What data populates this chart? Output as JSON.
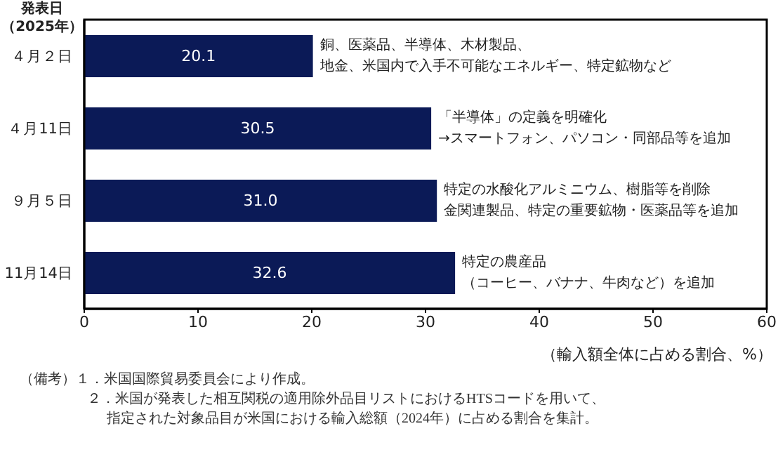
{
  "chart_data": {
    "type": "bar",
    "orientation": "horizontal",
    "ylabel": "発表日（2025年）",
    "xlabel": "（輸入額全体に占める割合、%）",
    "categories": [
      "４月２日",
      "４月11日",
      "９月５日",
      "11月14日"
    ],
    "values": [
      20.1,
      30.5,
      31.0,
      32.6
    ],
    "value_labels": [
      "20.1",
      "30.5",
      "31.0",
      "32.6"
    ],
    "color": "#0b1a57",
    "xlim": [
      0,
      60
    ],
    "xticks": [
      0,
      10,
      20,
      30,
      40,
      50,
      60
    ],
    "grid": false,
    "legend": false,
    "annotations": [
      {
        "text": "銅、医薬品、半導体、木材製品、",
        "x": 20.1,
        "y": "４月２日"
      },
      {
        "text": "地金、米国内で入手不可能なエネルギー、特定鉱物など",
        "x": 20.1,
        "y": "４月２日"
      },
      {
        "text": "「半導体」の定義を明確化",
        "x": 30.5,
        "y": "４月11日"
      },
      {
        "text": "→スマートフォン、パソコン・同部品等を追加",
        "x": 30.5,
        "y": "４月11日"
      },
      {
        "text": "特定の水酸化アルミニウム、樹脂等を削除",
        "x": 31.0,
        "y": "９月５日"
      },
      {
        "text": "金関連製品、特定の重要鉱物・医薬品等を追加",
        "x": 31.0,
        "y": "９月５日"
      },
      {
        "text": "特定の農産品",
        "x": 32.6,
        "y": "11月14日"
      },
      {
        "text": "（コーヒー、バナナ、牛肉など）を追加",
        "x": 32.6,
        "y": "11月14日"
      },
      "（備考）１．米国国際貿易委員会により作成。",
      "２．米国が発表した相互関税の適用除外品目リストにおけるHTSコードを用いて、",
      "指定された対象品目が米国における輸入総額（2024年）に占める割合を集計。"
    ]
  }
}
